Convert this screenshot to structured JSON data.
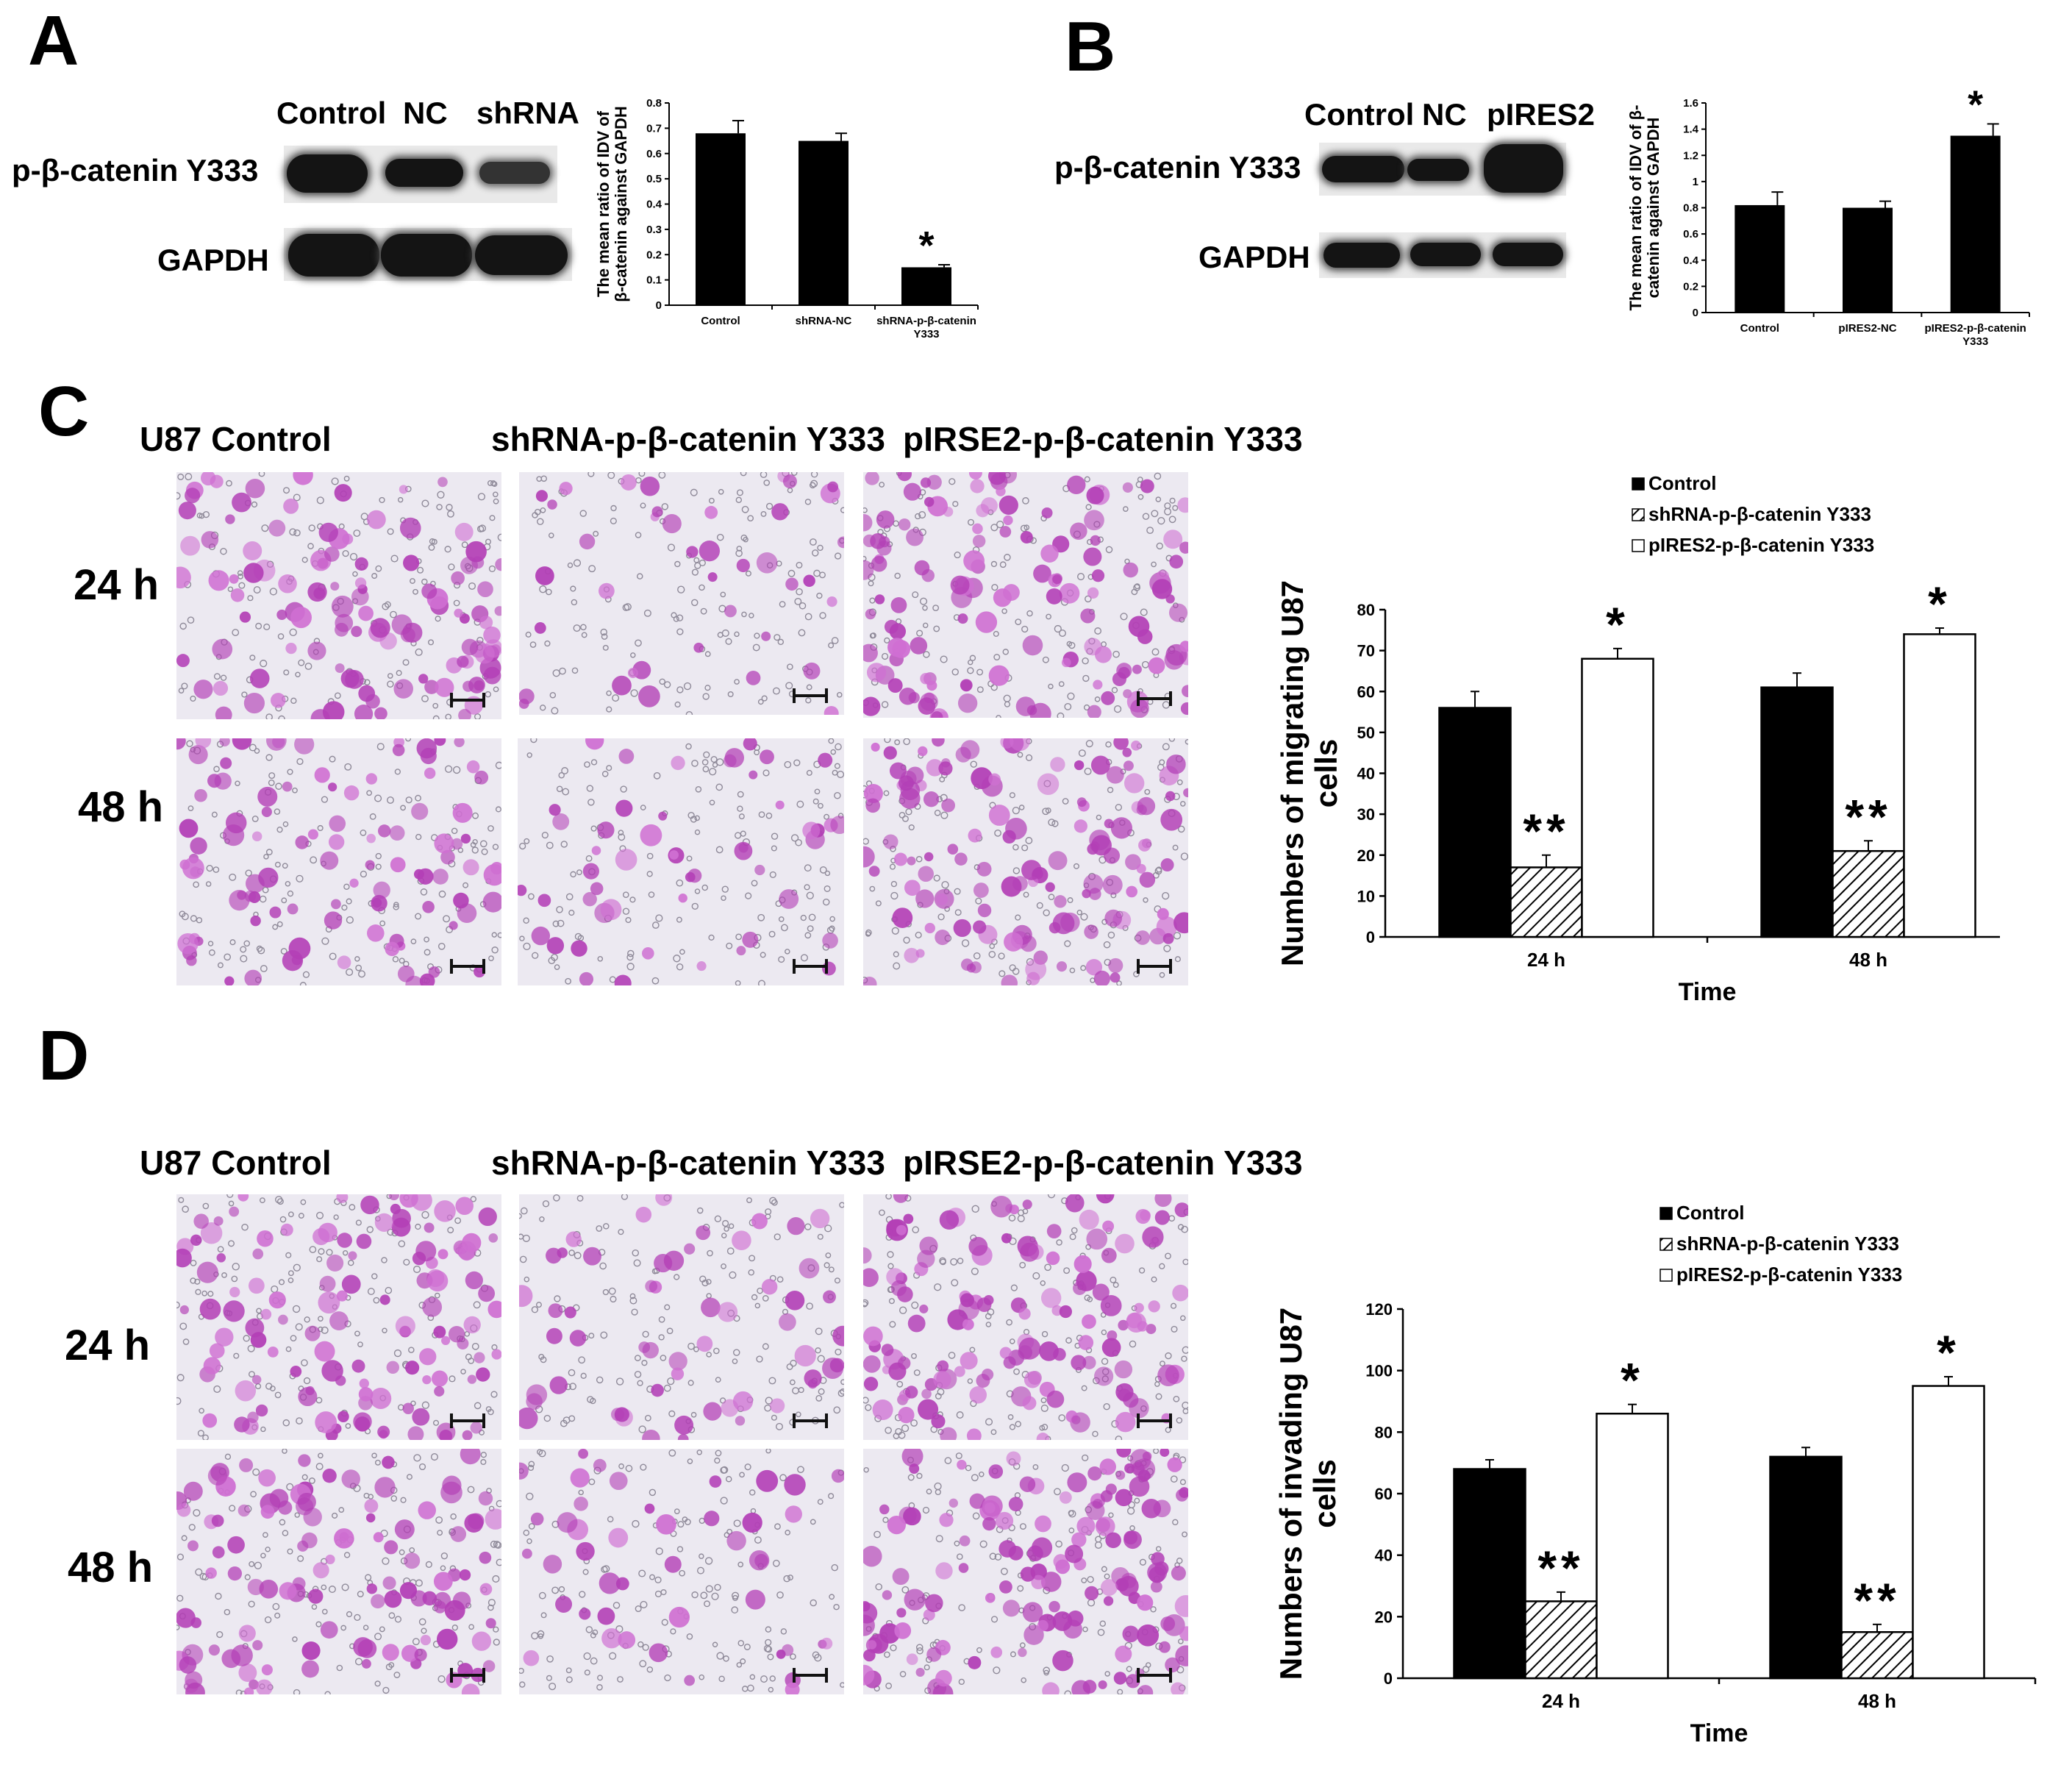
{
  "panels": {
    "a": "A",
    "b": "B",
    "c": "C",
    "d": "D"
  },
  "blotA": {
    "lanes": [
      "Control",
      "NC",
      "shRNA"
    ],
    "rows": [
      "p-β-catenin Y333",
      "GAPDH"
    ]
  },
  "blotB": {
    "lanes": [
      "Control",
      "NC",
      "pIRES2"
    ],
    "rows": [
      "p-β-catenin Y333",
      "GAPDH"
    ]
  },
  "micro": {
    "header": [
      "U87  Control",
      "shRNA-p-β-catenin Y333",
      "pIRSE2-p-β-catenin Y333"
    ],
    "times": [
      "24 h",
      "48 h"
    ]
  },
  "colors": {
    "bar_dark": "#000000",
    "bar_white": "#ffffff",
    "stain": "#b03ab0"
  },
  "chart_data": [
    {
      "id": "A",
      "type": "bar",
      "ylabel": "The mean ratio of IDV of β-catenin against GAPDH",
      "ylabel_lines": [
        "The mean ratio of IDV of",
        "β-catenin against GAPDH"
      ],
      "categories": [
        "Control",
        "shRNA-NC",
        "shRNA-p-β-catenin Y333"
      ],
      "category_lines": [
        [
          "Control"
        ],
        [
          "shRNA-NC"
        ],
        [
          "shRNA-p-β-catenin",
          "Y333"
        ]
      ],
      "values": [
        0.68,
        0.65,
        0.15
      ],
      "errors": [
        0.05,
        0.03,
        0.01
      ],
      "annotations": [
        "",
        "",
        "*"
      ],
      "ylim": [
        0,
        0.8
      ],
      "yticks": [
        "0",
        "0.1",
        "0.2",
        "0.3",
        "0.4",
        "0.5",
        "0.6",
        "0.7",
        "0.8"
      ]
    },
    {
      "id": "B",
      "type": "bar",
      "ylabel": "The mean ratio of IDV of β-catenin against GAPDH",
      "ylabel_lines": [
        "The mean ratio of IDV of β-",
        "catenin against GAPDH"
      ],
      "categories": [
        "Control",
        "pIRES2-NC",
        "pIRES2-p-β-catenin Y333"
      ],
      "category_lines": [
        [
          "Control"
        ],
        [
          "pIRES2-NC"
        ],
        [
          "pIRES2-p-β-catenin",
          "Y333"
        ]
      ],
      "values": [
        0.82,
        0.8,
        1.35
      ],
      "errors": [
        0.1,
        0.05,
        0.09
      ],
      "annotations": [
        "",
        "",
        "*"
      ],
      "ylim": [
        0,
        1.6
      ],
      "yticks": [
        "0",
        "0.2",
        "0.4",
        "0.6",
        "0.8",
        "1",
        "1.2",
        "1.4",
        "1.6"
      ]
    },
    {
      "id": "C",
      "type": "bar",
      "xlabel": "Time",
      "ylabel": "Numbers of migrating U87 cells",
      "ylabel_lines": [
        "Numbers of migrating U87",
        "cells"
      ],
      "categories": [
        "24 h",
        "48 h"
      ],
      "legend": [
        "Control",
        "shRNA-p-β-catenin Y333",
        "pIRES2-p-β-catenin Y333"
      ],
      "series": [
        {
          "name": "Control",
          "values": [
            56,
            61
          ],
          "errors": [
            4,
            3.5
          ],
          "annotations": [
            "",
            ""
          ]
        },
        {
          "name": "shRNA-p-β-catenin Y333",
          "values": [
            17,
            21
          ],
          "errors": [
            3,
            2.5
          ],
          "annotations": [
            "**",
            "**"
          ]
        },
        {
          "name": "pIRES2-p-β-catenin Y333",
          "values": [
            68,
            74
          ],
          "errors": [
            2.5,
            1.5
          ],
          "annotations": [
            "*",
            "*"
          ]
        }
      ],
      "ylim": [
        0,
        80
      ],
      "yticks": [
        "0",
        "10",
        "20",
        "30",
        "40",
        "50",
        "60",
        "70",
        "80"
      ],
      "legend_position": "top"
    },
    {
      "id": "D",
      "type": "bar",
      "xlabel": "Time",
      "ylabel": "Numbers of invading U87 cells",
      "ylabel_lines": [
        "Numbers of invading U87",
        "cells"
      ],
      "categories": [
        "24 h",
        "48 h"
      ],
      "legend": [
        "Control",
        "shRNA-p-β-catenin Y333",
        "pIRES2-p-β-catenin Y333"
      ],
      "series": [
        {
          "name": "Control",
          "values": [
            68,
            72
          ],
          "errors": [
            3,
            3
          ],
          "annotations": [
            "",
            ""
          ]
        },
        {
          "name": "shRNA-p-β-catenin Y333",
          "values": [
            25,
            15
          ],
          "errors": [
            3,
            2.5
          ],
          "annotations": [
            "**",
            "**"
          ]
        },
        {
          "name": "pIRES2-p-β-catenin Y333",
          "values": [
            86,
            95
          ],
          "errors": [
            3,
            3
          ],
          "annotations": [
            "*",
            "*"
          ]
        }
      ],
      "ylim": [
        0,
        120
      ],
      "yticks": [
        "0",
        "20",
        "40",
        "60",
        "80",
        "100",
        "120"
      ],
      "legend_position": "top"
    }
  ]
}
